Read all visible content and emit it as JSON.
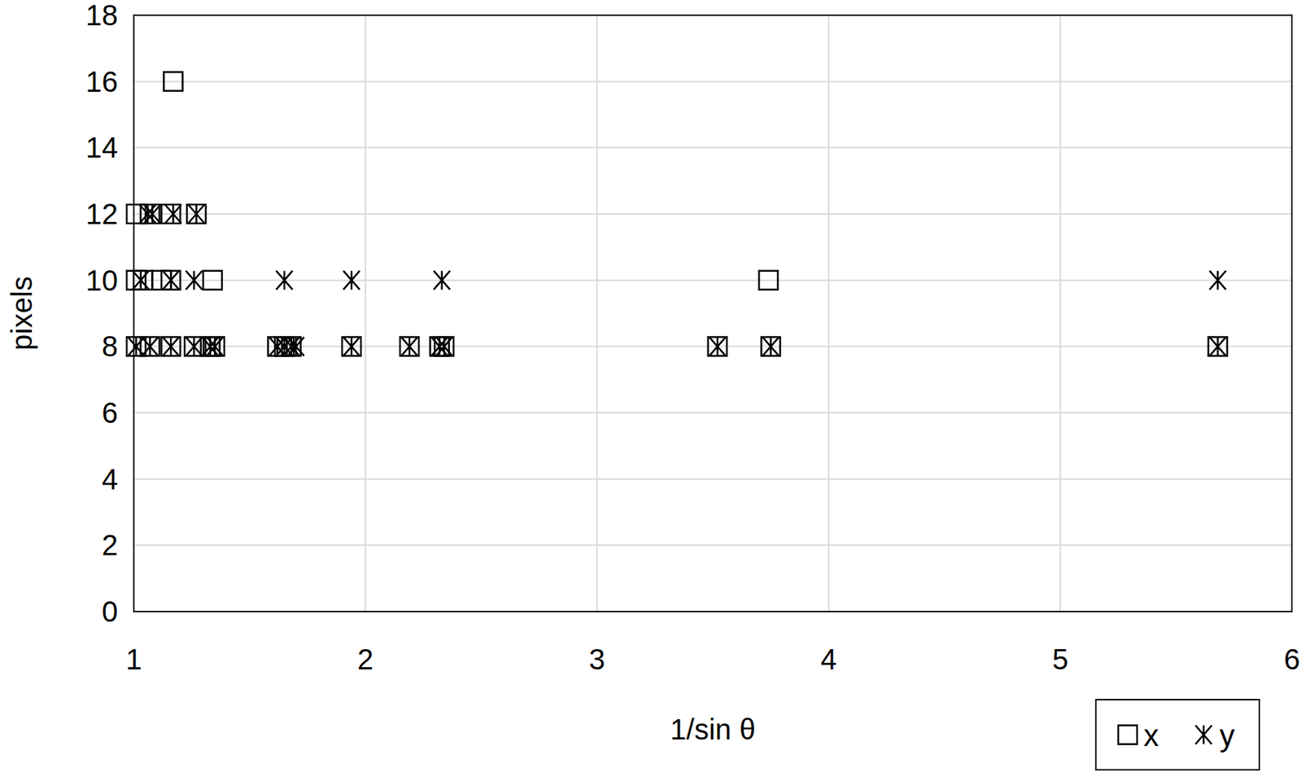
{
  "chart_data": {
    "type": "scatter",
    "x_label": "1/sin θ",
    "y_label": "pixels",
    "xlim": [
      1,
      6
    ],
    "xticks": [
      1,
      2,
      3,
      4,
      5,
      6
    ],
    "ylim": [
      0,
      18
    ],
    "yticks": [
      0,
      2,
      4,
      6,
      8,
      10,
      12,
      14,
      16,
      18
    ],
    "grid": true,
    "legend": "bottom-right",
    "series": [
      {
        "name": "x",
        "color": "#000000",
        "marker": "square",
        "x": [
          1.17,
          1.01,
          1.07,
          1.16,
          1.27,
          1.01,
          1.04,
          1.12,
          1.16,
          1.34,
          3.74,
          1.01,
          1.07,
          1.16,
          1.26,
          1.33,
          1.35,
          1.62,
          1.65,
          1.68,
          1.94,
          2.19,
          2.32,
          2.34,
          3.52,
          3.75,
          5.68
        ],
        "values": [
          16,
          12,
          12,
          12,
          12,
          10,
          10,
          10,
          10,
          10,
          10,
          8,
          8,
          8,
          8,
          8,
          8,
          8,
          8,
          8,
          8,
          8,
          8,
          8,
          8,
          8,
          8
        ]
      },
      {
        "name": "y",
        "color": "#000000",
        "marker": "asterisk",
        "x": [
          1.06,
          1.08,
          1.17,
          1.27,
          1.03,
          1.16,
          1.26,
          1.65,
          1.94,
          2.33,
          5.68,
          1.01,
          1.07,
          1.16,
          1.26,
          1.33,
          1.35,
          1.62,
          1.65,
          1.68,
          1.7,
          1.94,
          2.19,
          2.32,
          2.34,
          3.52,
          3.75,
          5.68
        ],
        "values": [
          12,
          12,
          12,
          12,
          10,
          10,
          10,
          10,
          10,
          10,
          10,
          8,
          8,
          8,
          8,
          8,
          8,
          8,
          8,
          8,
          8,
          8,
          8,
          8,
          8,
          8,
          8,
          8
        ]
      }
    ]
  }
}
